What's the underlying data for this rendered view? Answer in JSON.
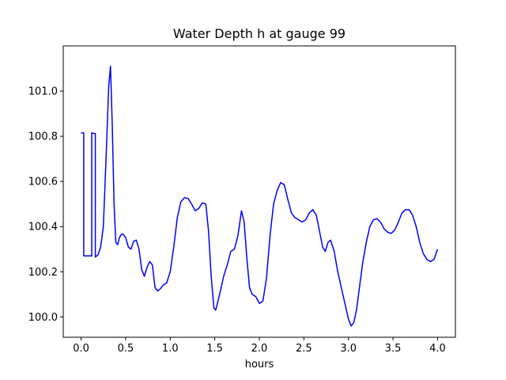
{
  "chart_data": {
    "type": "line",
    "title": "Water Depth h at gauge 99",
    "xlabel": "hours",
    "ylabel": "",
    "xlim": [
      -0.2,
      4.2
    ],
    "ylim": [
      99.91,
      101.2
    ],
    "xticks": [
      0.0,
      0.5,
      1.0,
      1.5,
      2.0,
      2.5,
      3.0,
      3.5,
      4.0
    ],
    "xtick_labels": [
      "0.0",
      "0.5",
      "1.0",
      "1.5",
      "2.0",
      "2.5",
      "3.0",
      "3.5",
      "4.0"
    ],
    "yticks": [
      100.0,
      100.2,
      100.4,
      100.6,
      100.8,
      101.0
    ],
    "ytick_labels": [
      "100.0",
      "100.2",
      "100.4",
      "100.6",
      "100.8",
      "101.0"
    ],
    "grid": false,
    "series": [
      {
        "color": "#0000ff",
        "x": [
          0.0,
          0.03,
          0.03,
          0.11,
          0.12,
          0.12,
          0.15,
          0.16,
          0.16,
          0.19,
          0.22,
          0.25,
          0.28,
          0.31,
          0.33,
          0.35,
          0.37,
          0.39,
          0.41,
          0.43,
          0.45,
          0.47,
          0.5,
          0.53,
          0.56,
          0.59,
          0.62,
          0.65,
          0.68,
          0.71,
          0.74,
          0.77,
          0.8,
          0.83,
          0.86,
          0.89,
          0.92,
          0.96,
          1.0,
          1.04,
          1.08,
          1.12,
          1.16,
          1.2,
          1.24,
          1.28,
          1.32,
          1.36,
          1.4,
          1.43,
          1.46,
          1.49,
          1.51,
          1.53,
          1.56,
          1.6,
          1.64,
          1.68,
          1.72,
          1.76,
          1.8,
          1.83,
          1.86,
          1.89,
          1.92,
          1.96,
          2.0,
          2.04,
          2.08,
          2.12,
          2.16,
          2.2,
          2.24,
          2.28,
          2.32,
          2.36,
          2.4,
          2.44,
          2.48,
          2.52,
          2.56,
          2.6,
          2.64,
          2.68,
          2.71,
          2.74,
          2.77,
          2.8,
          2.84,
          2.88,
          2.92,
          2.96,
          3.0,
          3.03,
          3.06,
          3.09,
          3.12,
          3.16,
          3.2,
          3.24,
          3.28,
          3.32,
          3.36,
          3.4,
          3.44,
          3.48,
          3.52,
          3.56,
          3.6,
          3.64,
          3.68,
          3.72,
          3.76,
          3.8,
          3.84,
          3.88,
          3.92,
          3.96,
          4.0
        ],
        "y": [
          100.815,
          100.815,
          100.27,
          100.27,
          100.27,
          100.815,
          100.812,
          100.812,
          100.265,
          100.275,
          100.31,
          100.4,
          100.7,
          101.02,
          101.11,
          100.85,
          100.5,
          100.33,
          100.32,
          100.35,
          100.365,
          100.367,
          100.352,
          100.31,
          100.3,
          100.335,
          100.34,
          100.3,
          100.21,
          100.18,
          100.22,
          100.245,
          100.23,
          100.13,
          100.115,
          100.125,
          100.14,
          100.15,
          100.2,
          100.31,
          100.44,
          100.51,
          100.528,
          100.525,
          100.5,
          100.47,
          100.48,
          100.505,
          100.5,
          100.38,
          100.18,
          100.04,
          100.03,
          100.06,
          100.11,
          100.18,
          100.23,
          100.29,
          100.3,
          100.36,
          100.47,
          100.42,
          100.26,
          100.13,
          100.1,
          100.09,
          100.06,
          100.07,
          100.17,
          100.36,
          100.5,
          100.56,
          100.595,
          100.585,
          100.52,
          100.46,
          100.44,
          100.43,
          100.42,
          100.43,
          100.46,
          100.475,
          100.45,
          100.37,
          100.31,
          100.29,
          100.33,
          100.34,
          100.29,
          100.2,
          100.13,
          100.06,
          99.99,
          99.96,
          99.975,
          100.03,
          100.12,
          100.24,
          100.33,
          100.4,
          100.43,
          100.435,
          100.42,
          100.39,
          100.375,
          100.37,
          100.385,
          100.42,
          100.46,
          100.475,
          100.475,
          100.45,
          100.4,
          100.33,
          100.28,
          100.255,
          100.245,
          100.255,
          100.3
        ]
      }
    ]
  }
}
